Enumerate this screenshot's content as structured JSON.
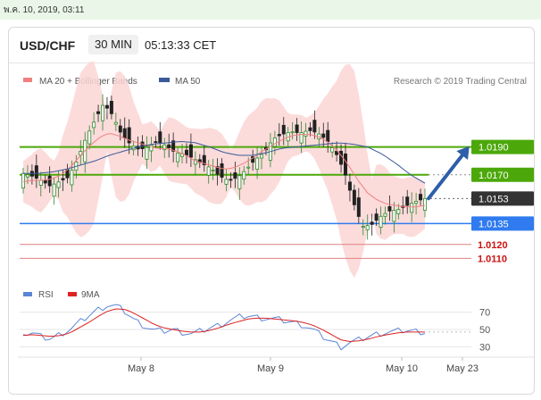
{
  "top_timestamp": "พ.ค. 10, 2019, 03:11",
  "header": {
    "pair": "USD/CHF",
    "timeframe": "30 MIN",
    "time": "05:13:33 CET"
  },
  "legend": {
    "ma20": "MA 20 + Bollinger Bands",
    "ma50": "MA 50",
    "credit": "Research © 2019 Trading Central"
  },
  "colors": {
    "ma20": "#f08080",
    "ma50": "#3a5a9a",
    "bollinger_fill": "#fbd5d5",
    "resistance": "#4ca80a",
    "support": "#2f7bef",
    "support_weak": "#e08080",
    "current": "#333333",
    "arrow": "#2f5ea8",
    "rsi": "#5b86d6",
    "rsi_ma": "#dd2222"
  },
  "chart_data": [
    {
      "type": "candlestick",
      "x_ticks": [
        "May 8",
        "May 9",
        "May 10",
        "May 23"
      ],
      "ylim": [
        1.01,
        1.0225
      ],
      "price_levels": [
        {
          "value": 1.019,
          "label": "1.0190",
          "style": "resistance"
        },
        {
          "value": 1.017,
          "label": "1.0170",
          "style": "resistance"
        },
        {
          "value": 1.0153,
          "label": "1.0153",
          "style": "current"
        },
        {
          "value": 1.0135,
          "label": "1.0135",
          "style": "support"
        },
        {
          "value": 1.012,
          "label": "1.0120",
          "style": "support_weak"
        },
        {
          "value": 1.011,
          "label": "1.0110",
          "style": "support_weak"
        }
      ],
      "close_path": [
        1.0171,
        1.0169,
        1.0166,
        1.0162,
        1.0165,
        1.0168,
        1.018,
        1.0196,
        1.0209,
        1.0221,
        1.0213,
        1.0199,
        1.0192,
        1.0188,
        1.019,
        1.0194,
        1.0191,
        1.0186,
        1.0185,
        1.0182,
        1.0178,
        1.0175,
        1.0169,
        1.0166,
        1.0168,
        1.0174,
        1.0181,
        1.0186,
        1.0196,
        1.0199,
        1.0201,
        1.02,
        1.0202,
        1.02,
        1.0195,
        1.0186,
        1.0172,
        1.015,
        1.0133,
        1.0134,
        1.014,
        1.0144,
        1.0145,
        1.0148,
        1.0151,
        1.0153
      ],
      "ma20_path": [
        1.0165,
        1.0166,
        1.0166,
        1.0167,
        1.017,
        1.0176,
        1.0184,
        1.0191,
        1.0197,
        1.02,
        1.0198,
        1.0195,
        1.0193,
        1.0191,
        1.0189,
        1.0189,
        1.0187,
        1.0184,
        1.018,
        1.0178,
        1.0176,
        1.0174,
        1.0175,
        1.0178,
        1.0182,
        1.0187,
        1.0191,
        1.0195,
        1.0198,
        1.0199,
        1.0199,
        1.0197,
        1.0193,
        1.0186,
        1.0177,
        1.0166,
        1.0157,
        1.0152,
        1.0149,
        1.0148,
        1.0147,
        1.0147,
        1.0148
      ],
      "ma50_path": [
        1.0171,
        1.0171,
        1.0172,
        1.0174,
        1.0177,
        1.018,
        1.0184,
        1.0187,
        1.019,
        1.0192,
        1.0193,
        1.0194,
        1.0193,
        1.019,
        1.0186,
        1.0184,
        1.0184,
        1.0186,
        1.0189,
        1.019,
        1.0191,
        1.0192,
        1.0193,
        1.0192,
        1.019,
        1.0185,
        1.0178,
        1.017,
        1.0164
      ],
      "forecast": {
        "from": 1.0153,
        "to": 1.019
      }
    },
    {
      "type": "line",
      "title": "RSI",
      "series": [
        {
          "name": "RSI"
        },
        {
          "name": "9MA"
        }
      ],
      "ylim": [
        20,
        80
      ],
      "y_ticks": [
        70,
        50,
        30
      ],
      "rsi": [
        44,
        46,
        41,
        39,
        45,
        50,
        58,
        66,
        73,
        78,
        77,
        70,
        60,
        54,
        49,
        48,
        50,
        47,
        45,
        48,
        52,
        55,
        60,
        64,
        66,
        64,
        63,
        62,
        60,
        58,
        55,
        50,
        42,
        36,
        30,
        35,
        38,
        42,
        45,
        47,
        48,
        49,
        48,
        47
      ],
      "rsi_ma": [
        43,
        44,
        43,
        42,
        43,
        46,
        52,
        58,
        65,
        71,
        74,
        73,
        68,
        62,
        56,
        52,
        50,
        48,
        47,
        47,
        49,
        52,
        56,
        59,
        62,
        63,
        63,
        62,
        61,
        60,
        58,
        55,
        50,
        44,
        38,
        36,
        37,
        39,
        42,
        44,
        46,
        47,
        47,
        47
      ]
    }
  ]
}
